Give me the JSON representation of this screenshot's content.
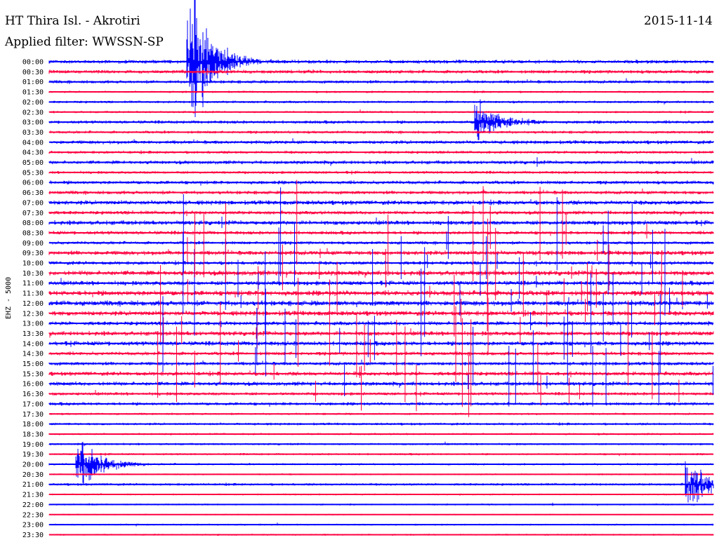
{
  "header": {
    "station": "HT Thira Isl. - Akrotiri",
    "filter": "Applied filter: WWSSN-SP",
    "date": "2015-11-14"
  },
  "chart_data": {
    "type": "line",
    "title": "HT Thira Isl. - Akrotiri",
    "subtitle": "Applied filter: WWSSN-SP",
    "ylabel": "EHZ - 5000",
    "colors": {
      "trace_a": "#0000ff",
      "trace_b": "#ff0040"
    },
    "trace_labels": [
      "00:00",
      "00:30",
      "01:00",
      "01:30",
      "02:00",
      "02:30",
      "03:00",
      "03:30",
      "04:00",
      "04:30",
      "05:00",
      "05:30",
      "06:00",
      "06:30",
      "07:00",
      "07:30",
      "08:00",
      "08:30",
      "09:00",
      "09:30",
      "10:00",
      "10:30",
      "11:00",
      "11:30",
      "12:00",
      "12:30",
      "13:00",
      "13:30",
      "14:00",
      "14:30",
      "15:00",
      "15:30",
      "16:00",
      "16:30",
      "17:00",
      "17:30",
      "18:00",
      "18:30",
      "19:00",
      "19:30",
      "20:00",
      "20:30",
      "21:00",
      "21:30",
      "22:00",
      "22:30",
      "23:00",
      "23:30"
    ],
    "trace_activity": [
      1.0,
      1.0,
      0.9,
      0.6,
      0.7,
      0.6,
      0.9,
      0.8,
      1.0,
      0.8,
      1.0,
      0.8,
      1.0,
      1.0,
      1.2,
      1.0,
      1.2,
      1.0,
      0.9,
      1.2,
      1.0,
      1.3,
      1.2,
      1.4,
      1.4,
      1.3,
      1.1,
      1.2,
      1.2,
      1.0,
      1.0,
      1.1,
      1.1,
      0.9,
      0.9,
      0.6,
      0.7,
      0.6,
      0.6,
      0.6,
      0.6,
      0.5,
      0.7,
      0.5,
      0.5,
      0.4,
      0.5,
      0.5
    ],
    "events": [
      {
        "trace": "00:00",
        "minute": 6.5,
        "strength": 3.0,
        "label": "large earthquake"
      },
      {
        "trace": "03:00",
        "minute": 19.5,
        "strength": 0.8,
        "label": "local event"
      },
      {
        "trace": "20:00",
        "minute": 1.5,
        "strength": 1.1,
        "label": "local event"
      },
      {
        "trace": "21:00",
        "minute": 29.0,
        "strength": 0.9,
        "label": "local event"
      }
    ],
    "grid": false,
    "legend": "none"
  }
}
